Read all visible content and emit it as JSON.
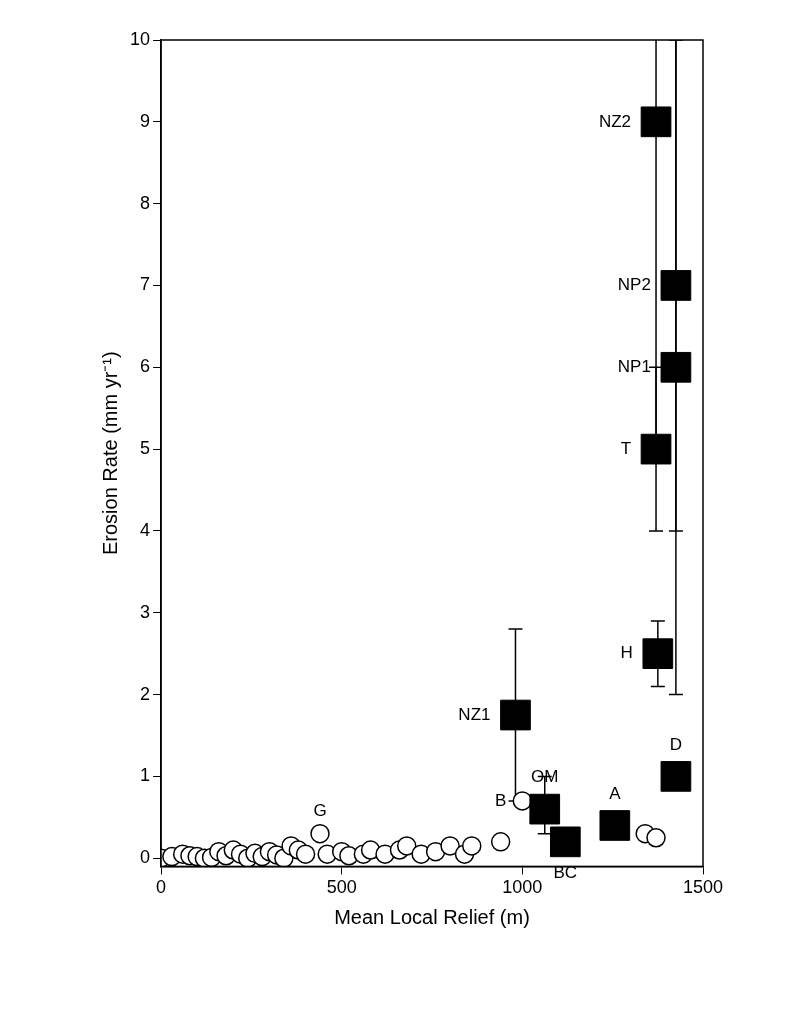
{
  "chart_data": {
    "type": "scatter",
    "x_label": "Mean Local Relief (m)",
    "y_label": "Erosion Rate (mm yr⁻¹)",
    "xlim": [
      0,
      1500
    ],
    "xticks": [
      0,
      500,
      1000,
      1500
    ],
    "ylim": [
      -0.1,
      10
    ],
    "yticks": [
      0,
      1,
      2,
      3,
      4,
      5,
      6,
      7,
      8,
      9,
      10
    ],
    "grid": false,
    "series": [
      {
        "marker": "open_circle",
        "color": "#000000",
        "x": [
          0,
          30,
          60,
          80,
          100,
          120,
          140,
          160,
          180,
          200,
          220,
          240,
          260,
          280,
          300,
          320,
          340,
          360,
          380,
          400,
          440,
          460,
          500,
          520,
          560,
          580,
          620,
          660,
          680,
          720,
          760,
          800,
          840,
          860,
          940,
          1000,
          1340,
          1370
        ],
        "values": [
          0,
          0.02,
          0.05,
          0.03,
          0.02,
          0,
          0.01,
          0.08,
          0.03,
          0.1,
          0.05,
          0,
          0.06,
          0.02,
          0.08,
          0.04,
          0,
          0.15,
          0.1,
          0.05,
          0.3,
          0.05,
          0.08,
          0.03,
          0.05,
          0.1,
          0.05,
          0.1,
          0.15,
          0.05,
          0.08,
          0.15,
          0.05,
          0.15,
          0.2,
          0.7,
          0.3,
          0.25
        ],
        "point_labels": [
          null,
          null,
          null,
          null,
          null,
          null,
          null,
          null,
          null,
          null,
          null,
          null,
          null,
          null,
          null,
          null,
          null,
          null,
          null,
          null,
          "G",
          null,
          null,
          null,
          null,
          null,
          null,
          null,
          null,
          null,
          null,
          null,
          null,
          null,
          null,
          "B",
          null,
          null
        ]
      },
      {
        "marker": "square",
        "color": "#000000",
        "x": [
          1370,
          1425,
          1425,
          1370,
          1375,
          981,
          1062,
          1256,
          1119,
          1425
        ],
        "values": [
          9,
          7,
          6,
          5,
          2.5,
          1.75,
          0.6,
          0.4,
          0.2,
          1.0
        ],
        "error_low": [
          5,
          4,
          2,
          4,
          2.1,
          0.7,
          0.3,
          null,
          null,
          null
        ],
        "error_high": [
          13,
          12,
          10,
          6,
          2.9,
          2.8,
          1.0,
          null,
          null,
          null
        ],
        "point_labels": [
          "NZ2",
          "NP2",
          "NP1",
          "T",
          "H",
          "NZ1",
          "OM",
          "A",
          "BC",
          "D"
        ]
      }
    ]
  }
}
